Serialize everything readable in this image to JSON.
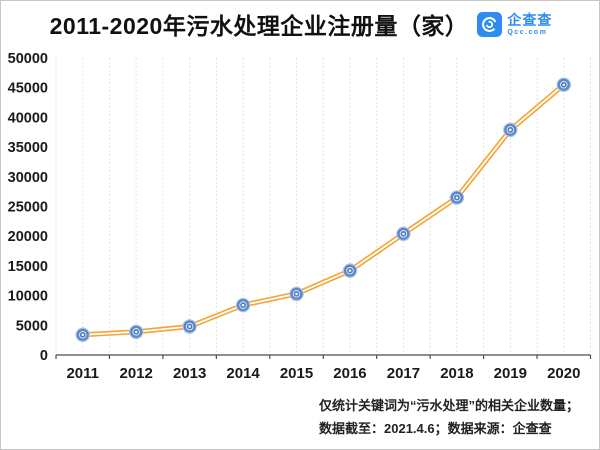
{
  "header": {
    "title": "2011-2020年污水处理企业注册量（家）",
    "brand": {
      "name": "企查查",
      "domain": "Qcc.com",
      "color": "#2E8CF0",
      "icon": "qichacha-logo-icon"
    }
  },
  "chart_data": {
    "type": "line",
    "title": "2011-2020年污水处理企业注册量（家）",
    "categories": [
      "2011",
      "2012",
      "2013",
      "2014",
      "2015",
      "2016",
      "2017",
      "2018",
      "2019",
      "2020"
    ],
    "values": [
      3400,
      3900,
      4800,
      8400,
      10300,
      14200,
      20400,
      26500,
      37900,
      45500
    ],
    "xlabel": "",
    "ylabel": "",
    "ylim": [
      0,
      50000
    ],
    "yticks": [
      0,
      5000,
      10000,
      15000,
      20000,
      25000,
      30000,
      35000,
      40000,
      45000,
      50000
    ],
    "grid": "vertical-dashed-minor",
    "legend": "none",
    "line_color": "#F4A434",
    "line_core_color": "#FFFFFF",
    "marker_outer_color": "#5B86C8",
    "marker_inner_color": "#4F7DC2",
    "marker_halo_color": "#AEC3E4",
    "gridline_color": "#D8D8D8",
    "axis_color": "#4D4D4D",
    "tick_label_color": "#1A1A1A"
  },
  "footer": {
    "note_line1": "仅统计关键词为“污水处理”的相关企业数量；",
    "note_line2": "数据截至：2021.4.6；数据来源：企查查"
  }
}
